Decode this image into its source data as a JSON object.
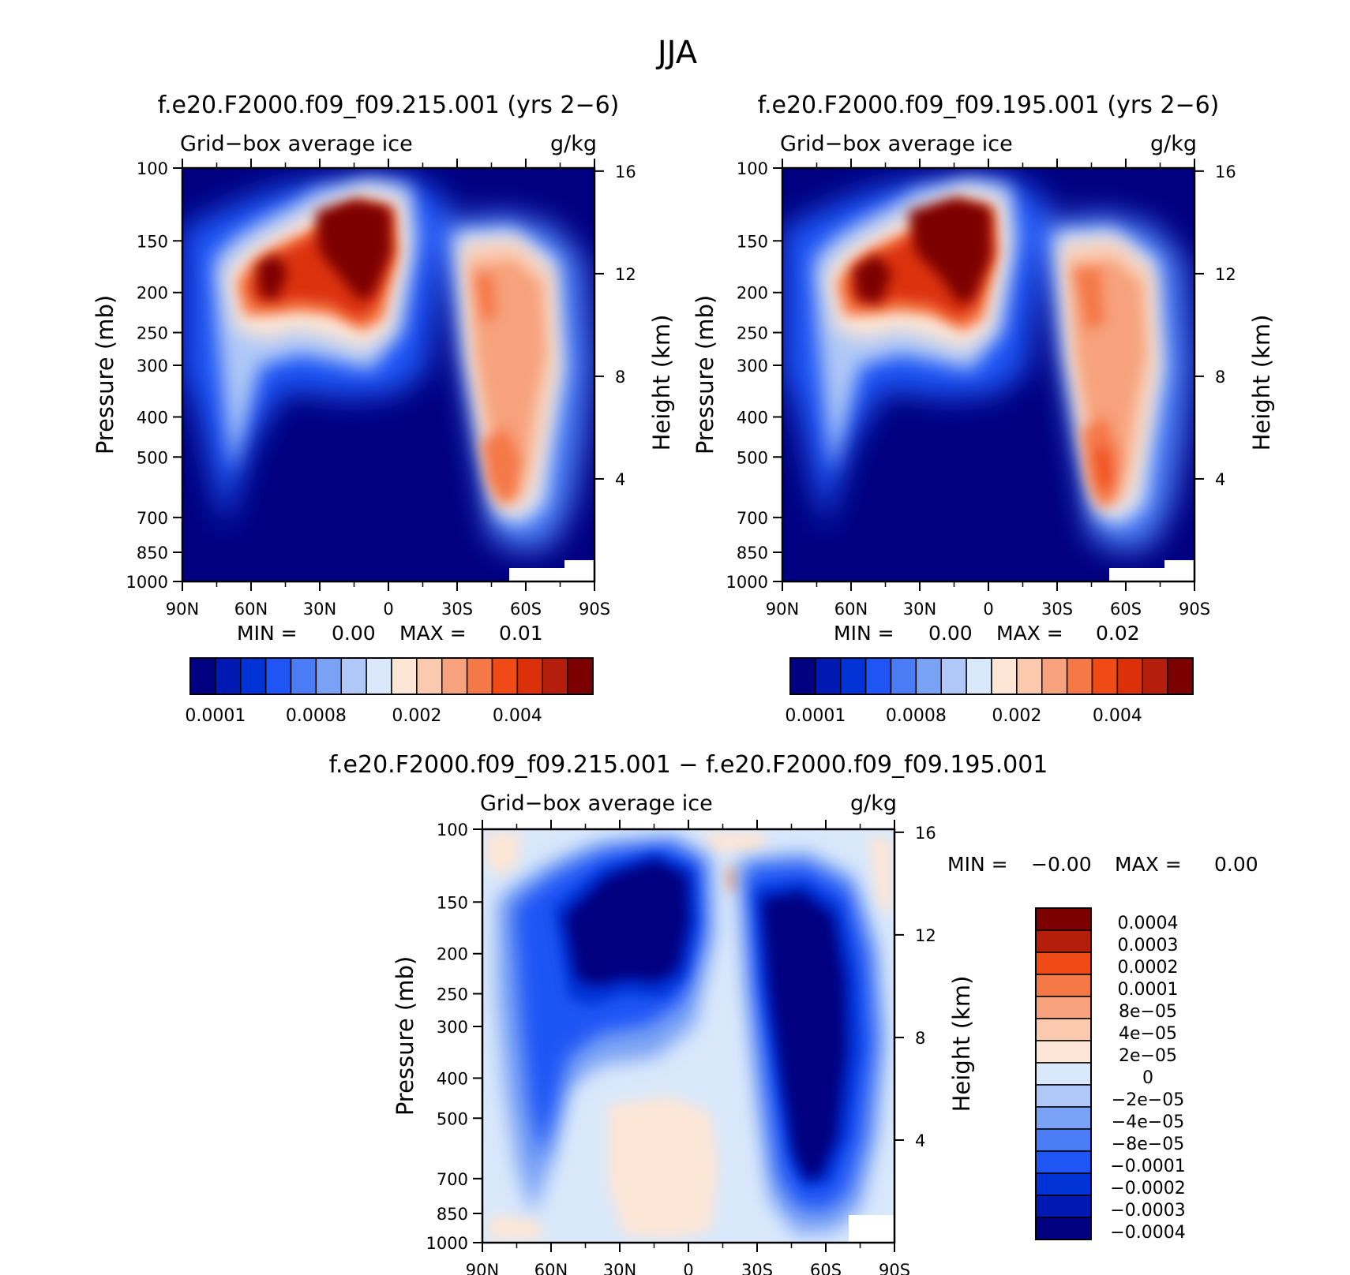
{
  "page_title": "JJA",
  "colors": {
    "model_ramp": [
      "#000080",
      "#0019b3",
      "#0032d6",
      "#1f55f5",
      "#4a7cf5",
      "#7ba3f5",
      "#afc8f7",
      "#d9e8fb",
      "#fde6d6",
      "#fbc9ad",
      "#f7a27c",
      "#f57847",
      "#f04b17",
      "#dc300a",
      "#b41e0a",
      "#7d0000"
    ],
    "diff_ramp": [
      "#000080",
      "#0019b3",
      "#0032d6",
      "#1f55f5",
      "#4a7cf5",
      "#7ba3f5",
      "#afc8f7",
      "#d9e8fb",
      "#fde6d6",
      "#fbc9ad",
      "#f7a27c",
      "#f57847",
      "#f04b17",
      "#b41e0a",
      "#7d0000"
    ]
  },
  "chart_data": [
    {
      "type": "heatmap",
      "title": "f.e20.F2000.f09_f09.215.001 (yrs 2−6)",
      "field_label": "Grid−box average ice",
      "units": "g/kg",
      "ylabel": "Pressure (mb)",
      "ylabel_right": "Height (km)",
      "x_ticks": [
        "90N",
        "60N",
        "30N",
        "0",
        "30S",
        "60S",
        "90S"
      ],
      "y_ticks": [
        "100",
        "150",
        "200",
        "250",
        "300",
        "400",
        "500",
        "700",
        "850",
        "1000"
      ],
      "y_right_ticks": [
        "16",
        "12",
        "8",
        "4"
      ],
      "min_label": "MIN =",
      "min_value": "0.00",
      "max_label": "MAX =",
      "max_value": "0.01",
      "colorbar_labels": [
        "0.0001",
        "0.0008",
        "0.002",
        "0.004"
      ]
    },
    {
      "type": "heatmap",
      "title": "f.e20.F2000.f09_f09.195.001 (yrs 2−6)",
      "field_label": "Grid−box average ice",
      "units": "g/kg",
      "ylabel": "Pressure (mb)",
      "ylabel_right": "Height (km)",
      "x_ticks": [
        "90N",
        "60N",
        "30N",
        "0",
        "30S",
        "60S",
        "90S"
      ],
      "y_ticks": [
        "100",
        "150",
        "200",
        "250",
        "300",
        "400",
        "500",
        "700",
        "850",
        "1000"
      ],
      "y_right_ticks": [
        "16",
        "12",
        "8",
        "4"
      ],
      "min_label": "MIN =",
      "min_value": "0.00",
      "max_label": "MAX =",
      "max_value": "0.02",
      "colorbar_labels": [
        "0.0001",
        "0.0008",
        "0.002",
        "0.004"
      ]
    },
    {
      "type": "heatmap",
      "title": "f.e20.F2000.f09_f09.215.001 − f.e20.F2000.f09_f09.195.001",
      "field_label": "Grid−box average ice",
      "units": "g/kg",
      "ylabel": "Pressure (mb)",
      "ylabel_right": "Height (km)",
      "x_ticks": [
        "90N",
        "60N",
        "30N",
        "0",
        "30S",
        "60S",
        "90S"
      ],
      "y_ticks": [
        "100",
        "150",
        "200",
        "250",
        "300",
        "400",
        "500",
        "700",
        "850",
        "1000"
      ],
      "y_right_ticks": [
        "16",
        "12",
        "8",
        "4"
      ],
      "min_label": "MIN =",
      "min_value": "−0.00",
      "max_label": "MAX =",
      "max_value": "0.00",
      "colorbar_labels": [
        "0.0004",
        "0.0003",
        "0.0002",
        "0.0001",
        "8e−05",
        "4e−05",
        "2e−05",
        "0",
        "−2e−05",
        "−4e−05",
        "−8e−05",
        "−0.0001",
        "−0.0002",
        "−0.0003",
        "−0.0004"
      ]
    }
  ]
}
